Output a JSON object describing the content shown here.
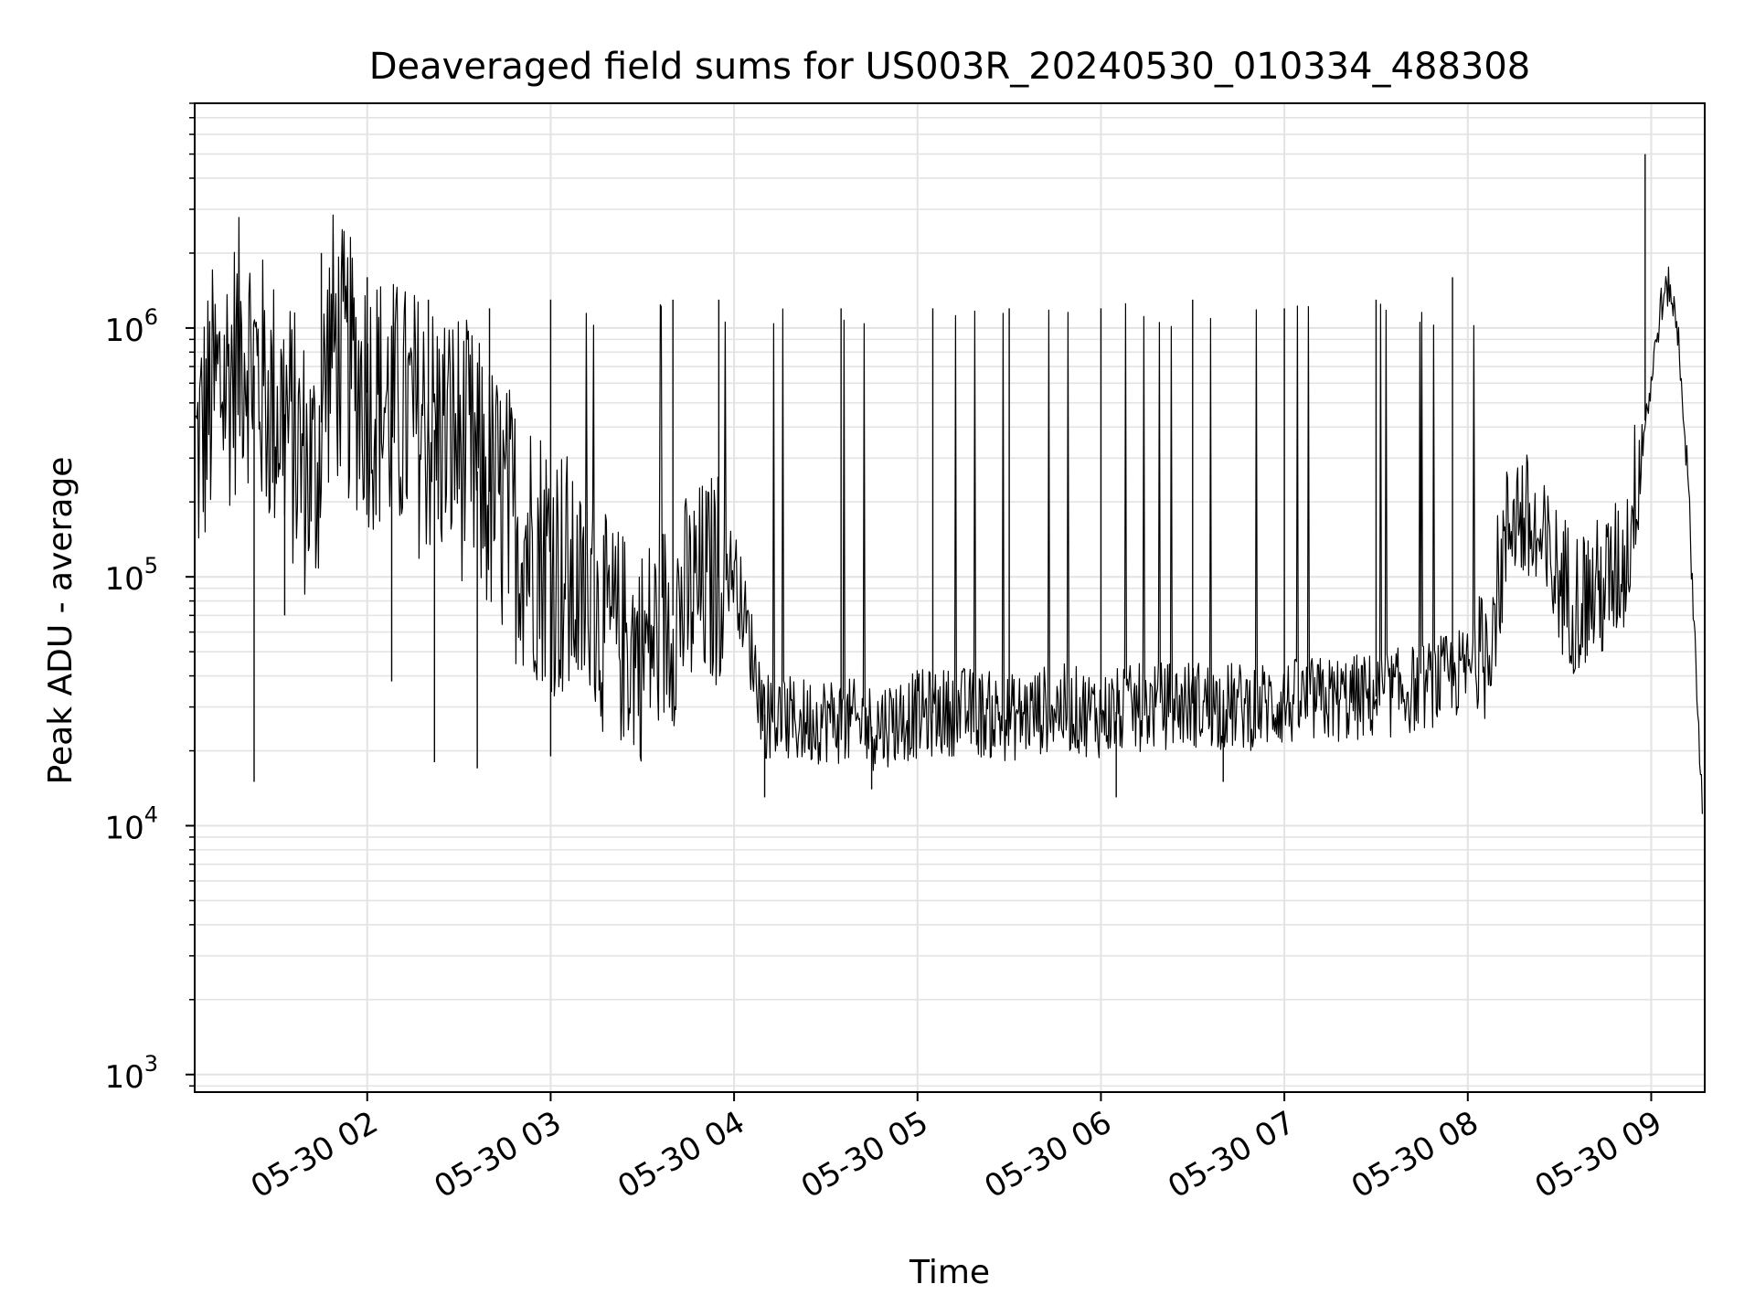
{
  "chart_data": {
    "type": "line",
    "title": "Deaveraged field sums for US003R_20240530_010334_488308",
    "xlabel": "Time",
    "ylabel": "Peak ADU - average",
    "y_scale": "log",
    "ylim": [
      850,
      8000000
    ],
    "xlim": [
      "2024-05-30 01:03:34",
      "2024-05-30 09:17:30"
    ],
    "grid": true,
    "x_ticks": [
      {
        "label": "05-30 02",
        "value": "2024-05-30 02:00"
      },
      {
        "label": "05-30 03",
        "value": "2024-05-30 03:00"
      },
      {
        "label": "05-30 04",
        "value": "2024-05-30 04:00"
      },
      {
        "label": "05-30 05",
        "value": "2024-05-30 05:00"
      },
      {
        "label": "05-30 06",
        "value": "2024-05-30 06:00"
      },
      {
        "label": "05-30 07",
        "value": "2024-05-30 07:00"
      },
      {
        "label": "05-30 08",
        "value": "2024-05-30 08:00"
      },
      {
        "label": "05-30 09",
        "value": "2024-05-30 09:00"
      }
    ],
    "y_ticks": [
      {
        "base": "10",
        "exp": "3",
        "value": 1000
      },
      {
        "base": "10",
        "exp": "4",
        "value": 10000
      },
      {
        "base": "10",
        "exp": "5",
        "value": 100000
      },
      {
        "base": "10",
        "exp": "6",
        "value": 1000000
      }
    ],
    "series": [
      {
        "color": "#000000",
        "x": [
          "2024-05-30 01:04",
          "2024-05-30 01:10",
          "2024-05-30 01:15",
          "2024-05-30 01:20",
          "2024-05-30 01:25",
          "2024-05-30 01:28",
          "2024-05-30 01:33",
          "2024-05-30 01:38",
          "2024-05-30 01:43",
          "2024-05-30 01:48",
          "2024-05-30 01:53",
          "2024-05-30 02:00",
          "2024-05-30 02:10",
          "2024-05-30 02:20",
          "2024-05-30 02:30",
          "2024-05-30 02:40",
          "2024-05-30 02:50",
          "2024-05-30 03:00",
          "2024-05-30 03:10",
          "2024-05-30 03:20",
          "2024-05-30 03:30",
          "2024-05-30 03:40",
          "2024-05-30 03:50",
          "2024-05-30 04:00",
          "2024-05-30 04:10",
          "2024-05-30 04:20",
          "2024-05-30 04:30",
          "2024-05-30 04:45",
          "2024-05-30 05:00",
          "2024-05-30 05:15",
          "2024-05-30 05:30",
          "2024-05-30 05:45",
          "2024-05-30 06:00",
          "2024-05-30 06:15",
          "2024-05-30 06:30",
          "2024-05-30 06:45",
          "2024-05-30 07:00",
          "2024-05-30 07:15",
          "2024-05-30 07:30",
          "2024-05-30 07:45",
          "2024-05-30 07:55",
          "2024-05-30 08:05",
          "2024-05-30 08:15",
          "2024-05-30 08:25",
          "2024-05-30 08:35",
          "2024-05-30 08:45",
          "2024-05-30 08:52",
          "2024-05-30 08:56",
          "2024-05-30 09:00",
          "2024-05-30 09:03",
          "2024-05-30 09:06",
          "2024-05-30 09:09",
          "2024-05-30 09:12",
          "2024-05-30 09:15",
          "2024-05-30 09:17"
        ],
        "y": [
          300000,
          550000,
          650000,
          900000,
          600000,
          500000,
          450000,
          300000,
          250000,
          900000,
          700000,
          550000,
          450000,
          400000,
          350000,
          220000,
          150000,
          120000,
          80000,
          60000,
          50000,
          70000,
          90000,
          110000,
          28000,
          26000,
          27000,
          25000,
          28000,
          29000,
          27000,
          30000,
          28000,
          30000,
          31000,
          30000,
          31000,
          32000,
          33000,
          36000,
          40000,
          45000,
          200000,
          120000,
          80000,
          90000,
          120000,
          300000,
          600000,
          1200000,
          1500000,
          900000,
          250000,
          35000,
          10000
        ]
      }
    ],
    "spikes": [
      {
        "x": "2024-05-30 01:45",
        "y": 2000000
      },
      {
        "x": "2024-05-30 02:00",
        "y": 1600000
      },
      {
        "x": "2024-05-30 02:20",
        "y": 1300000
      },
      {
        "x": "2024-05-30 02:40",
        "y": 1200000
      },
      {
        "x": "2024-05-30 03:00",
        "y": 1300000
      },
      {
        "x": "2024-05-30 03:40",
        "y": 1300000
      },
      {
        "x": "2024-05-30 03:55",
        "y": 1300000
      },
      {
        "x": "2024-05-30 04:35",
        "y": 1200000
      },
      {
        "x": "2024-05-30 05:05",
        "y": 1200000
      },
      {
        "x": "2024-05-30 05:30",
        "y": 1200000
      },
      {
        "x": "2024-05-30 06:00",
        "y": 1200000
      },
      {
        "x": "2024-05-30 06:30",
        "y": 1300000
      },
      {
        "x": "2024-05-30 07:00",
        "y": 1200000
      },
      {
        "x": "2024-05-30 07:30",
        "y": 1300000
      },
      {
        "x": "2024-05-30 07:55",
        "y": 1600000
      },
      {
        "x": "2024-05-30 08:58",
        "y": 5000000
      }
    ],
    "dips": [
      {
        "x": "2024-05-30 01:23",
        "y": 15000
      },
      {
        "x": "2024-05-30 01:33",
        "y": 70000
      },
      {
        "x": "2024-05-30 02:08",
        "y": 38000
      },
      {
        "x": "2024-05-30 02:22",
        "y": 18000
      },
      {
        "x": "2024-05-30 02:36",
        "y": 17000
      },
      {
        "x": "2024-05-30 03:00",
        "y": 19000
      },
      {
        "x": "2024-05-30 04:10",
        "y": 13000
      },
      {
        "x": "2024-05-30 04:45",
        "y": 14000
      },
      {
        "x": "2024-05-30 06:05",
        "y": 13000
      },
      {
        "x": "2024-05-30 06:40",
        "y": 15000
      }
    ]
  }
}
